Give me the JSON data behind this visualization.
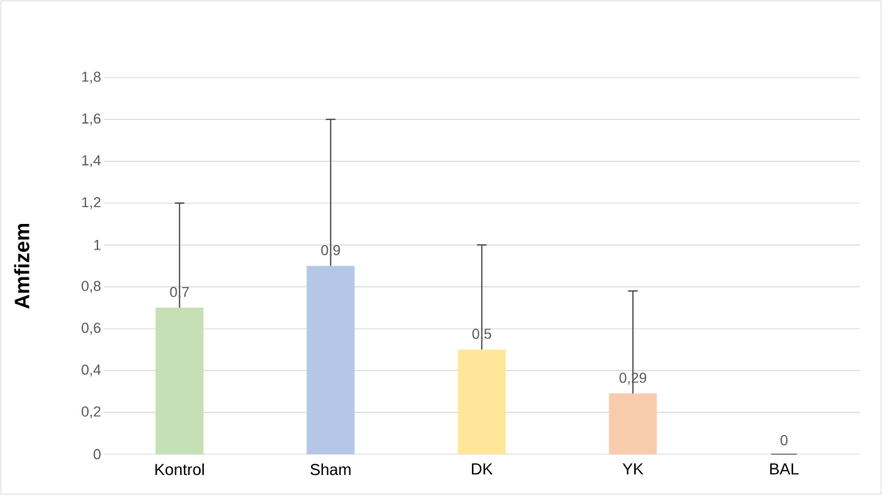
{
  "chart_data": {
    "type": "bar",
    "ylabel": "Amfizem",
    "categories": [
      "Kontrol",
      "Sham",
      "DK",
      "YK",
      "BAL"
    ],
    "values": [
      0.7,
      0.9,
      0.5,
      0.29,
      0
    ],
    "colors": [
      "#c5e0b4",
      "#b4c7e7",
      "#ffe699",
      "#f8cbad",
      "#c9c9c9"
    ],
    "errors": [
      [
        0.7,
        1.2
      ],
      [
        0.9,
        1.6
      ],
      [
        0.5,
        1.0
      ],
      [
        0.29,
        0.78
      ],
      [
        0,
        0
      ]
    ],
    "value_labels": [
      "0,7",
      "0,9",
      "0,5",
      "0,29",
      "0"
    ],
    "ylim": [
      0,
      1.8
    ],
    "yticks": [
      0,
      {
        "value": 0.2,
        "label": "0,2"
      },
      {
        "value": 0.4,
        "label": "0,4"
      },
      {
        "value": 0.6,
        "label": "0,6"
      },
      {
        "value": 0.8,
        "label": "0,8"
      },
      1,
      {
        "value": 1.2,
        "label": "1,2"
      },
      {
        "value": 1.4,
        "label": "1,4"
      },
      {
        "value": 1.6,
        "label": "1,6"
      },
      {
        "value": 1.8,
        "label": "1,8"
      }
    ],
    "grid": "y"
  }
}
